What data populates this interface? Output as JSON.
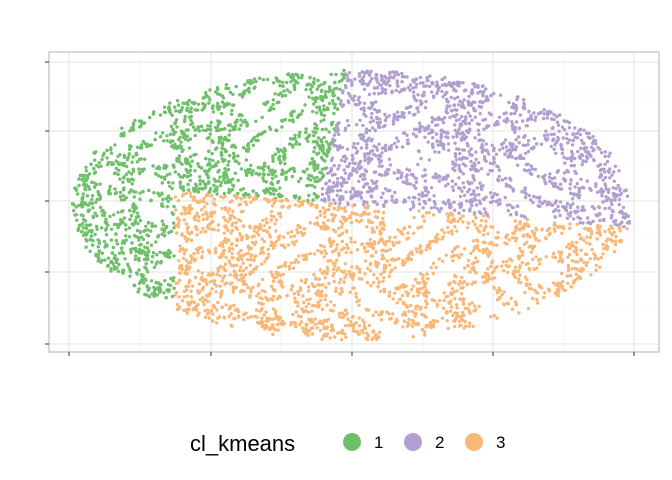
{
  "chart_data": {
    "type": "scatter",
    "title": "",
    "xlabel": "",
    "ylabel": "",
    "grid": true,
    "axis_tick_labels_shown": false,
    "legend": {
      "position": "bottom",
      "title": "cl_kmeans",
      "entries": [
        {
          "label": "1",
          "color": "#70bf6b"
        },
        {
          "label": "2",
          "color": "#b1a0cf"
        },
        {
          "label": "3",
          "color": "#f9b878"
        }
      ]
    },
    "series": [
      {
        "name": "1",
        "color": "#70bf6b",
        "region": "left"
      },
      {
        "name": "2",
        "color": "#b1a0cf",
        "region": "upper-right"
      },
      {
        "name": "3",
        "color": "#f9b878",
        "region": "lower-center"
      }
    ]
  }
}
